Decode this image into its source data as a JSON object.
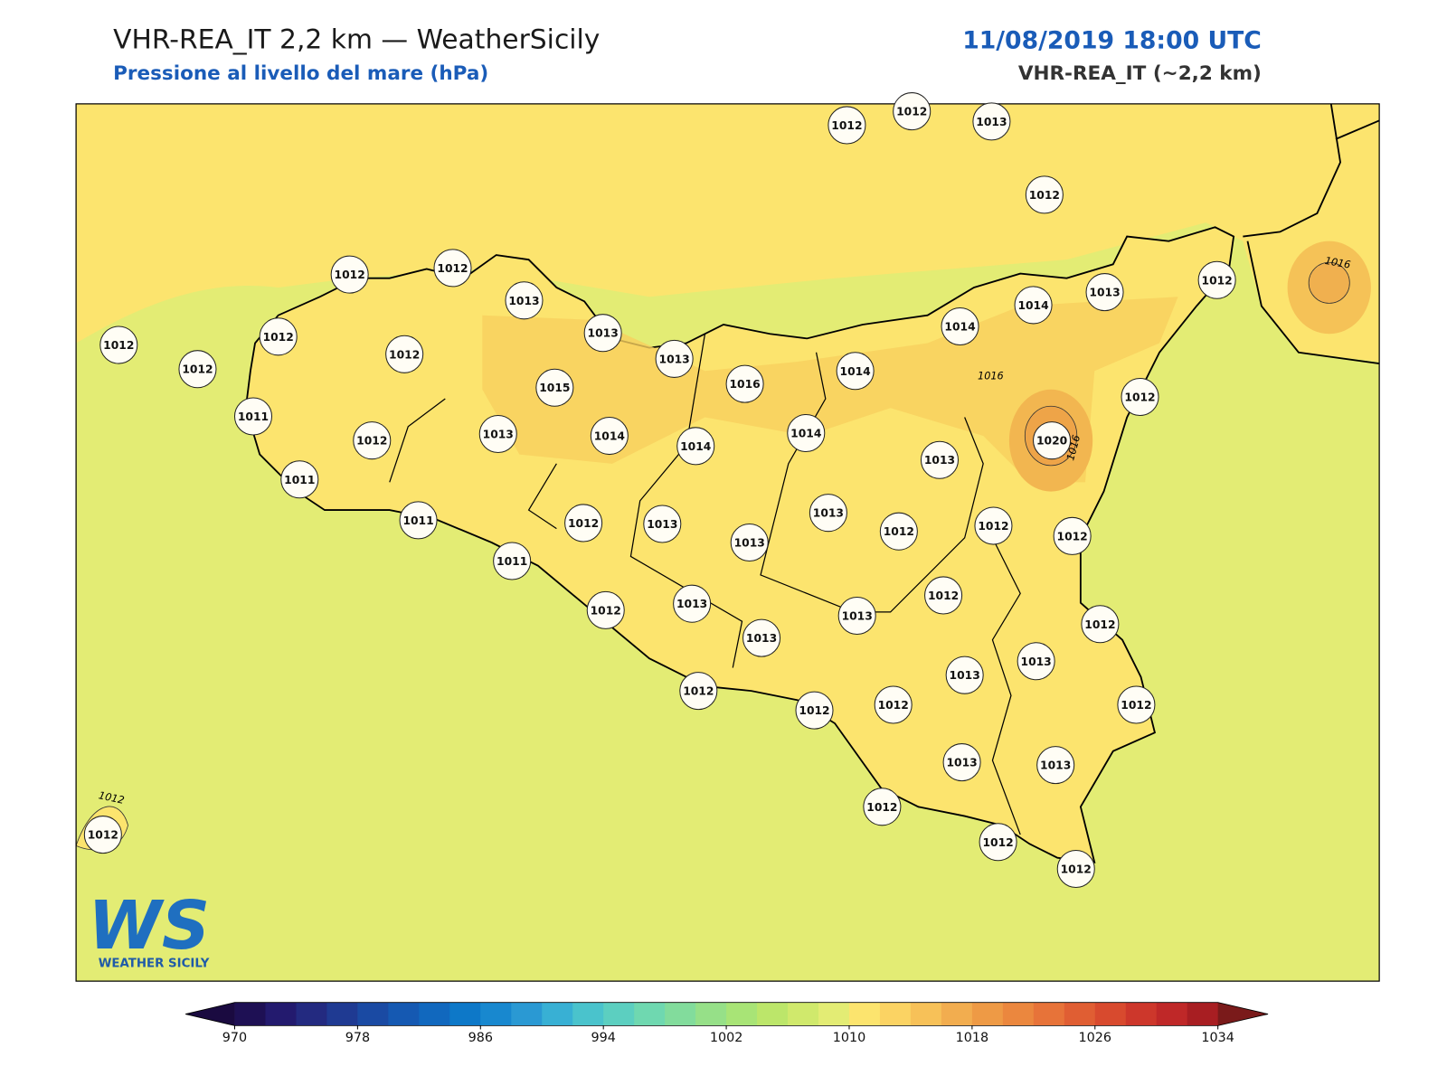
{
  "header": {
    "title": "VHR-REA_IT 2,2 km — WeatherSicily",
    "subtitle": "Pressione al livello del mare (hPa)",
    "datetime": "11/08/2019 18:00 UTC",
    "model": "VHR-REA_IT (~2,2 km)"
  },
  "stations": [
    1012,
    1012,
    1013,
    1012,
    1012,
    1012,
    1013,
    1012,
    1012,
    1012,
    1012,
    1013,
    1013,
    1015,
    1016,
    1014,
    1013,
    1012,
    1014,
    1014,
    1012,
    1011,
    1012,
    1013,
    1014,
    1014,
    1014,
    1020,
    1013,
    1011,
    1011,
    1012,
    1013,
    1013,
    1013,
    1012,
    1012,
    1012,
    1011,
    1012,
    1013,
    1013,
    1013,
    1012,
    1012,
    1013,
    1013,
    1012,
    1012,
    1012,
    1012,
    1013,
    1013,
    1012,
    1012,
    1012,
    1012
  ],
  "contour_labels": [
    1016,
    1016,
    1016,
    1012
  ],
  "logo": {
    "mark": "WS",
    "name": "WEATHER SICILY"
  },
  "colorbar": {
    "range": [
      970,
      1034
    ],
    "ticks": [
      970,
      978,
      986,
      994,
      1002,
      1010,
      1018,
      1026,
      1034
    ],
    "colors": [
      "#1e1054",
      "#231a6e",
      "#232a80",
      "#1f3a92",
      "#1a4aa3",
      "#1559b2",
      "#1168be",
      "#0d78c8",
      "#1888cf",
      "#2a99d3",
      "#38b0d4",
      "#4ac3cc",
      "#5ccfc0",
      "#6fd8b0",
      "#82dc9c",
      "#96e088",
      "#a8e476",
      "#bce66a",
      "#d0e96c",
      "#e3ec74",
      "#fce46e",
      "#fbd363",
      "#f7c158",
      "#f2ad4f",
      "#ee9a45",
      "#eb873e",
      "#e77339",
      "#e05e33",
      "#d84a2e",
      "#cd372b",
      "#bf2828",
      "#a81e22"
    ],
    "under_color": "#1a0a40",
    "over_color": "#7a1a1a"
  }
}
